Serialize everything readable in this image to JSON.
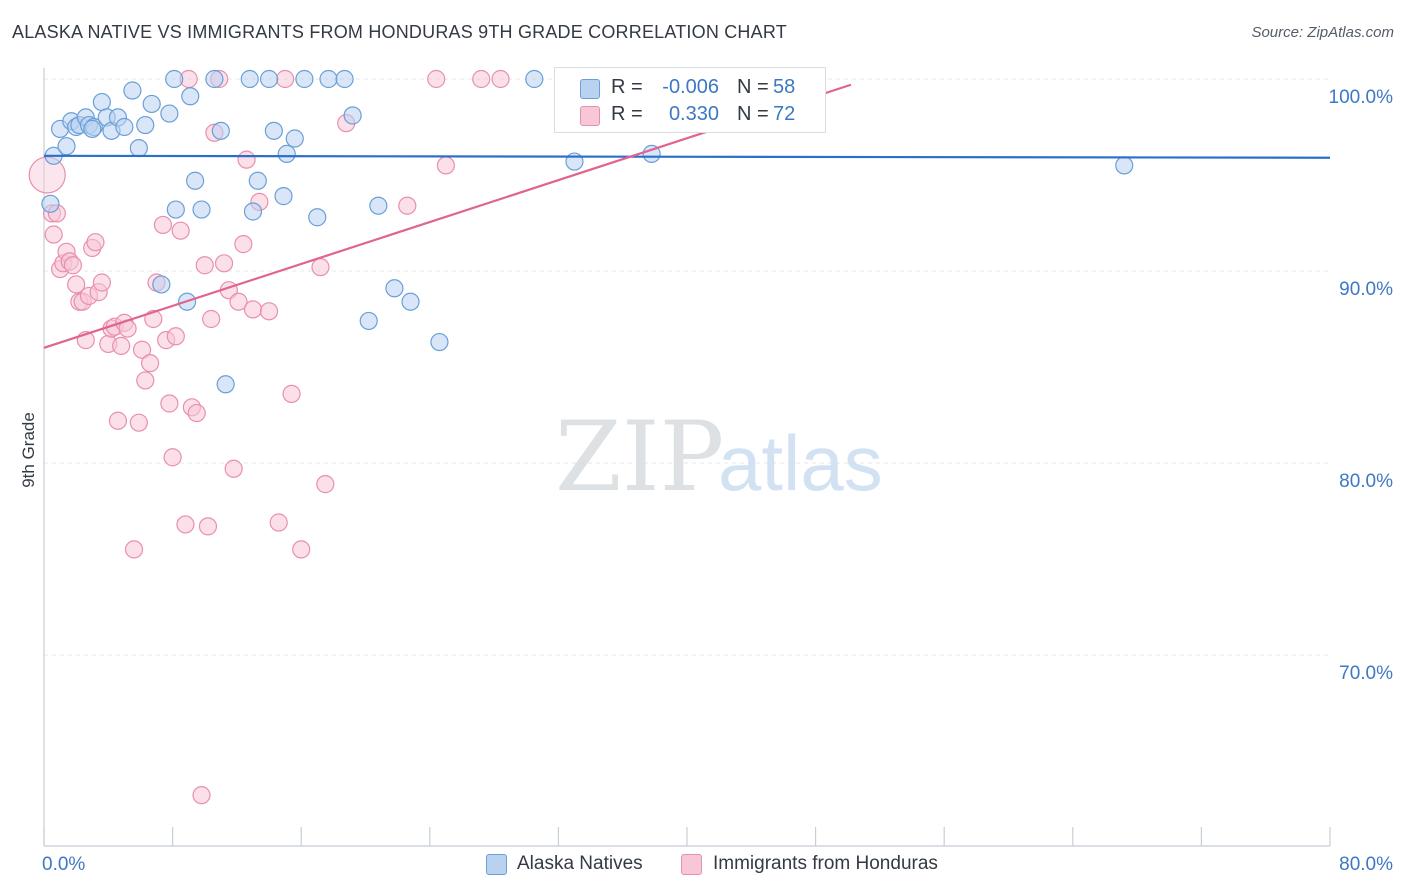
{
  "header": {
    "title": "ALASKA NATIVE VS IMMIGRANTS FROM HONDURAS 9TH GRADE CORRELATION CHART",
    "source": "Source: ZipAtlas.com"
  },
  "watermark": {
    "zip": "ZIP",
    "atlas": "atlas"
  },
  "colors": {
    "blue": "#6a9fd8",
    "blue_fill": "#b9d2f0",
    "blue_line": "#2a6fc9",
    "pink": "#e98fae",
    "pink_fill": "#f7c7d7",
    "pink_line": "#e0648e",
    "axis_label": "#3d78c4",
    "grid": "#e3e7ec"
  },
  "stats_legend": {
    "rows": [
      {
        "r_label": "R =",
        "r_value": "-0.006",
        "n_label": "N =",
        "n_value": "58",
        "series": "blue"
      },
      {
        "r_label": "R =",
        "r_value": "0.330",
        "n_label": "N =",
        "n_value": "72",
        "series": "pink"
      }
    ]
  },
  "bottom_legend": [
    {
      "label": "Alaska Natives",
      "series": "blue"
    },
    {
      "label": "Immigrants from Honduras",
      "series": "pink"
    }
  ],
  "chart_data": {
    "type": "scatter",
    "title": "ALASKA NATIVE VS IMMIGRANTS FROM HONDURAS 9TH GRADE CORRELATION CHART",
    "xlabel": "",
    "ylabel": "9th Grade",
    "xlim": [
      0,
      80
    ],
    "ylim": [
      62,
      100.5
    ],
    "x_tick_labels": [
      {
        "value": 0,
        "label": "0.0%"
      },
      {
        "value": 80,
        "label": "80.0%"
      }
    ],
    "x_minor_ticks": [
      8,
      16,
      24,
      32,
      40,
      48,
      56,
      64,
      72
    ],
    "y_tick_labels": [
      {
        "value": 100,
        "label": "100.0%"
      },
      {
        "value": 90,
        "label": "90.0%"
      },
      {
        "value": 80,
        "label": "80.0%"
      },
      {
        "value": 70,
        "label": "70.0%"
      }
    ],
    "grid": true,
    "legend_position": "bottom",
    "series": [
      {
        "name": "Alaska Natives",
        "color": "blue",
        "trend": {
          "x": [
            0,
            80
          ],
          "y": [
            96.0,
            95.9
          ]
        },
        "points": [
          [
            0.6,
            96.0
          ],
          [
            0.4,
            93.5
          ],
          [
            1.0,
            97.4
          ],
          [
            1.4,
            96.5
          ],
          [
            1.7,
            97.8
          ],
          [
            2.0,
            97.5
          ],
          [
            2.2,
            97.6
          ],
          [
            2.6,
            98.0
          ],
          [
            2.8,
            97.6
          ],
          [
            3.1,
            97.5
          ],
          [
            3.6,
            98.8
          ],
          [
            3.9,
            98.0
          ],
          [
            4.2,
            97.3
          ],
          [
            4.6,
            98.0
          ],
          [
            5.0,
            97.5
          ],
          [
            5.5,
            99.4
          ],
          [
            5.9,
            96.4
          ],
          [
            6.3,
            97.6
          ],
          [
            6.7,
            98.7
          ],
          [
            7.3,
            89.3
          ],
          [
            7.8,
            98.2
          ],
          [
            8.1,
            100.0
          ],
          [
            8.2,
            93.2
          ],
          [
            8.9,
            88.4
          ],
          [
            9.1,
            99.1
          ],
          [
            9.4,
            94.7
          ],
          [
            9.8,
            93.2
          ],
          [
            10.6,
            100.0
          ],
          [
            11.0,
            97.3
          ],
          [
            11.3,
            84.1
          ],
          [
            12.8,
            100.0
          ],
          [
            13.0,
            93.1
          ],
          [
            13.3,
            94.7
          ],
          [
            14.0,
            100.0
          ],
          [
            14.3,
            97.3
          ],
          [
            14.9,
            93.9
          ],
          [
            15.1,
            96.1
          ],
          [
            15.6,
            96.9
          ],
          [
            16.2,
            100.0
          ],
          [
            17.0,
            92.8
          ],
          [
            17.7,
            100.0
          ],
          [
            18.7,
            100.0
          ],
          [
            19.2,
            98.1
          ],
          [
            20.2,
            87.4
          ],
          [
            20.8,
            93.4
          ],
          [
            21.8,
            89.1
          ],
          [
            22.8,
            88.4
          ],
          [
            24.6,
            86.3
          ],
          [
            30.5,
            100.0
          ],
          [
            33.0,
            95.7
          ],
          [
            37.8,
            96.1
          ],
          [
            38.2,
            100.0
          ],
          [
            39.3,
            100.0
          ],
          [
            40.2,
            99.3
          ],
          [
            43.5,
            100.0
          ],
          [
            44.6,
            100.0
          ],
          [
            67.2,
            95.5
          ],
          [
            3.0,
            97.4
          ]
        ]
      },
      {
        "name": "Immigrants from Honduras",
        "color": "pink",
        "trend": {
          "x": [
            0,
            50.2
          ],
          "y": [
            86.0,
            99.7
          ]
        },
        "points": [
          [
            0.2,
            95.0
          ],
          [
            0.5,
            93.0
          ],
          [
            0.6,
            91.9
          ],
          [
            0.8,
            93.0
          ],
          [
            1.0,
            90.1
          ],
          [
            1.2,
            90.4
          ],
          [
            1.4,
            91.0
          ],
          [
            1.6,
            90.5
          ],
          [
            1.8,
            90.3
          ],
          [
            2.0,
            89.3
          ],
          [
            2.2,
            88.4
          ],
          [
            2.4,
            88.4
          ],
          [
            2.6,
            86.4
          ],
          [
            2.8,
            88.7
          ],
          [
            3.0,
            91.2
          ],
          [
            3.2,
            91.5
          ],
          [
            3.4,
            88.9
          ],
          [
            3.6,
            89.4
          ],
          [
            4.0,
            86.2
          ],
          [
            4.2,
            87.0
          ],
          [
            4.4,
            87.1
          ],
          [
            4.6,
            82.2
          ],
          [
            4.8,
            86.1
          ],
          [
            5.0,
            87.3
          ],
          [
            5.2,
            87.0
          ],
          [
            5.6,
            75.5
          ],
          [
            5.9,
            82.1
          ],
          [
            6.1,
            85.9
          ],
          [
            6.3,
            84.3
          ],
          [
            6.6,
            85.2
          ],
          [
            6.8,
            87.5
          ],
          [
            7.0,
            89.4
          ],
          [
            7.4,
            92.4
          ],
          [
            7.6,
            86.4
          ],
          [
            7.8,
            83.1
          ],
          [
            8.0,
            80.3
          ],
          [
            8.2,
            86.6
          ],
          [
            8.5,
            92.1
          ],
          [
            8.8,
            76.8
          ],
          [
            9.0,
            100.0
          ],
          [
            9.2,
            82.9
          ],
          [
            9.5,
            82.6
          ],
          [
            9.8,
            62.7
          ],
          [
            10.0,
            90.3
          ],
          [
            10.2,
            76.7
          ],
          [
            10.4,
            87.5
          ],
          [
            10.6,
            97.2
          ],
          [
            10.9,
            100.0
          ],
          [
            11.2,
            90.4
          ],
          [
            11.5,
            89.0
          ],
          [
            11.8,
            79.7
          ],
          [
            12.1,
            88.4
          ],
          [
            12.4,
            91.4
          ],
          [
            12.6,
            95.8
          ],
          [
            13.0,
            88.0
          ],
          [
            13.4,
            93.6
          ],
          [
            14.0,
            87.9
          ],
          [
            14.6,
            76.9
          ],
          [
            15.0,
            100.0
          ],
          [
            15.4,
            83.6
          ],
          [
            16.0,
            75.5
          ],
          [
            17.2,
            90.2
          ],
          [
            17.5,
            78.9
          ],
          [
            18.8,
            97.7
          ],
          [
            22.6,
            93.4
          ],
          [
            24.4,
            100.0
          ],
          [
            25.0,
            95.5
          ],
          [
            27.2,
            100.0
          ],
          [
            28.4,
            100.0
          ],
          [
            33.2,
            100.0
          ],
          [
            41.5,
            100.0
          ],
          [
            42.5,
            100.0
          ]
        ]
      }
    ]
  }
}
